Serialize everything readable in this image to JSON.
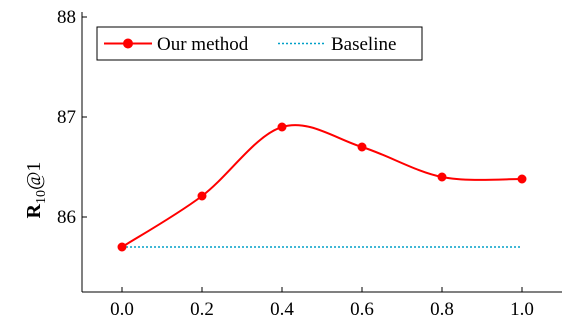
{
  "chart_data": {
    "type": "line",
    "x": [
      0.0,
      0.2,
      0.4,
      0.6,
      0.8,
      1.0
    ],
    "xticks": [
      "0.0",
      "0.2",
      "0.4",
      "0.6",
      "0.8",
      "1.0"
    ],
    "yticks": [
      86,
      87,
      88
    ],
    "xlim": [
      -0.1,
      1.1
    ],
    "ylim": [
      85.25,
      88.05
    ],
    "ylabel": {
      "main": "R",
      "sub": "10",
      "tail": "@1"
    },
    "xlabel": "",
    "title": "",
    "legend_position": "top-left",
    "grid": false,
    "series": [
      {
        "name": "Our method",
        "values": [
          85.7,
          86.21,
          86.9,
          86.7,
          86.4,
          86.38
        ],
        "color": "#ff0000",
        "style": "solid-smooth-markers"
      },
      {
        "name": "Baseline",
        "values": [
          85.7,
          85.7,
          85.7,
          85.7,
          85.7,
          85.7
        ],
        "color": "#00a0c8",
        "style": "dotted"
      }
    ]
  }
}
